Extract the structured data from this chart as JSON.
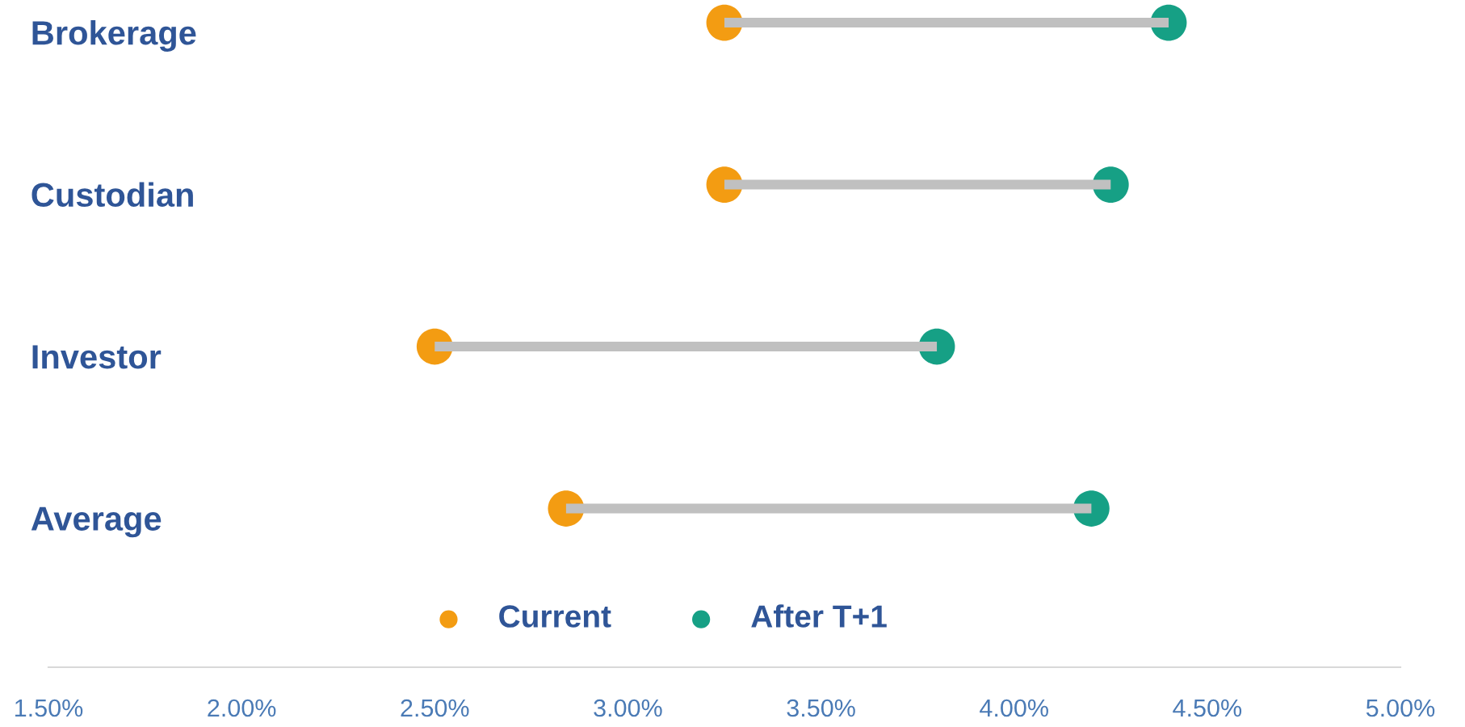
{
  "chart_data": {
    "type": "bar",
    "orientation": "horizontal",
    "categories": [
      "Brokerage",
      "Custodian",
      "Investor",
      "Average"
    ],
    "series": [
      {
        "color": "#c0c0c0",
        "base": [
          3.25,
          3.25,
          2.5,
          2.84
        ],
        "values": [
          1.15,
          1.0,
          1.3,
          1.36
        ]
      },
      {
        "type": "scatter",
        "name": "Current",
        "color": "#f39c12",
        "values": [
          3.25,
          3.25,
          2.5,
          2.84
        ]
      },
      {
        "type": "scatter",
        "name": "After T+1",
        "color": "#16a085",
        "values": [
          4.4,
          4.25,
          3.8,
          4.2
        ]
      }
    ],
    "xlim": [
      1.5,
      5.0
    ],
    "xticks": [
      {
        "value": 1.5,
        "label": "1.50%"
      },
      {
        "value": 2.0,
        "label": "2.00%"
      },
      {
        "value": 2.5,
        "label": "2.50%"
      },
      {
        "value": 3.0,
        "label": "3.00%"
      },
      {
        "value": 3.5,
        "label": "3.50%"
      },
      {
        "value": 4.0,
        "label": "4.00%"
      },
      {
        "value": 4.5,
        "label": "4.50%"
      },
      {
        "value": 5.0,
        "label": "5.00%"
      }
    ],
    "grid": false,
    "legend": "bottom",
    "marker": "circle"
  }
}
